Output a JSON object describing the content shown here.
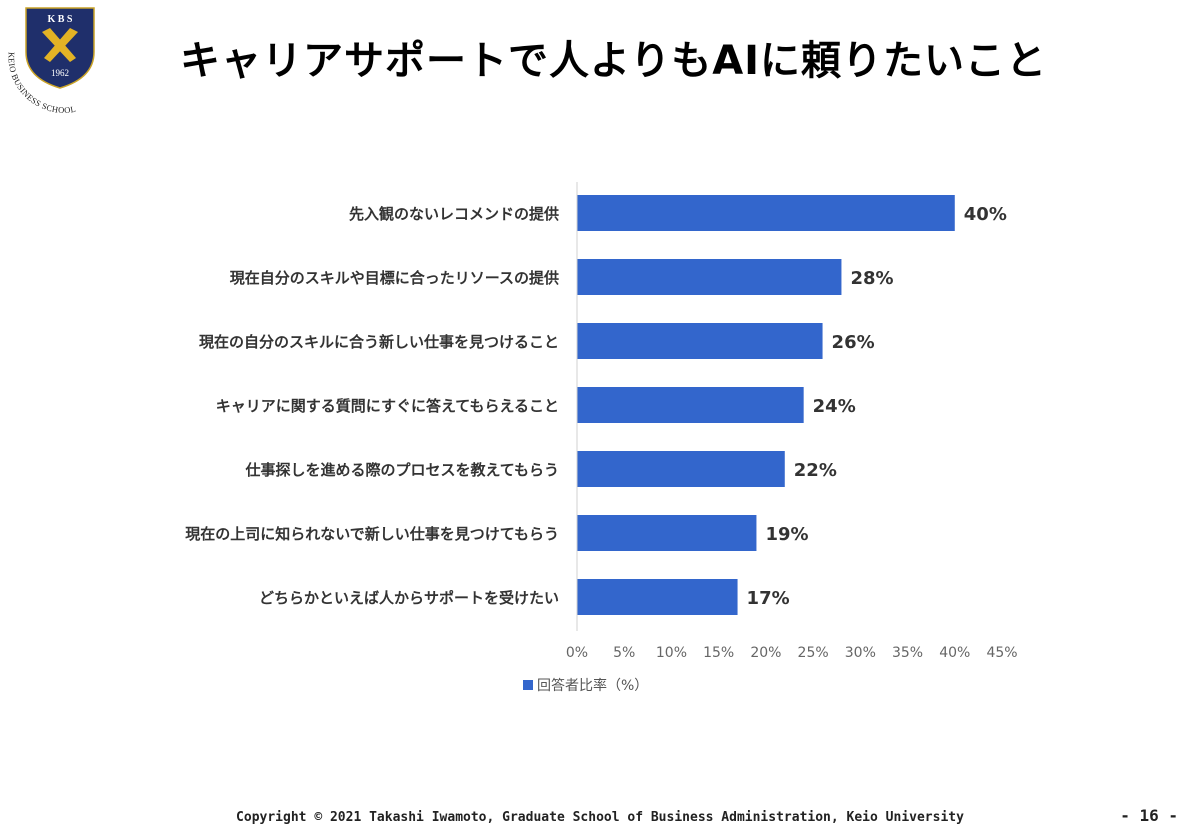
{
  "logo": {
    "letters": "K B S",
    "year": "1962",
    "name": "KEIO BUSINESS SCHOOL",
    "colors": {
      "shield": "#1f2f6b",
      "emblem": "#e3b325"
    }
  },
  "title": "キャリアサポートで人よりもAIに頼りたいこと",
  "chart_data": {
    "type": "bar",
    "orientation": "horizontal",
    "categories": [
      "先入観のないレコメンドの提供",
      "現在自分のスキルや目標に合ったリソースの提供",
      "現在の自分のスキルに合う新しい仕事を見つけること",
      "キャリアに関する質問にすぐに答えてもらえること",
      "仕事探しを進める際のプロセスを教えてもらう",
      "現在の上司に知られないで新しい仕事を見つけてもらう",
      "どちらかといえば人からサポートを受けたい"
    ],
    "series": [
      {
        "name": "回答者比率（%）",
        "values": [
          40,
          28,
          26,
          24,
          22,
          19,
          17
        ],
        "color": "#3366cc"
      }
    ],
    "data_labels": [
      "40%",
      "28%",
      "26%",
      "24%",
      "22%",
      "19%",
      "17%"
    ],
    "xlim": [
      0,
      45
    ],
    "xticks": [
      "0%",
      "5%",
      "10%",
      "15%",
      "20%",
      "25%",
      "30%",
      "35%",
      "40%",
      "45%"
    ],
    "grid": false,
    "legend": "bottom-left"
  },
  "footer": {
    "copyright": "Copyright © 2021 Takashi Iwamoto, Graduate School of Business Administration, Keio University",
    "page": "- 16 -"
  }
}
